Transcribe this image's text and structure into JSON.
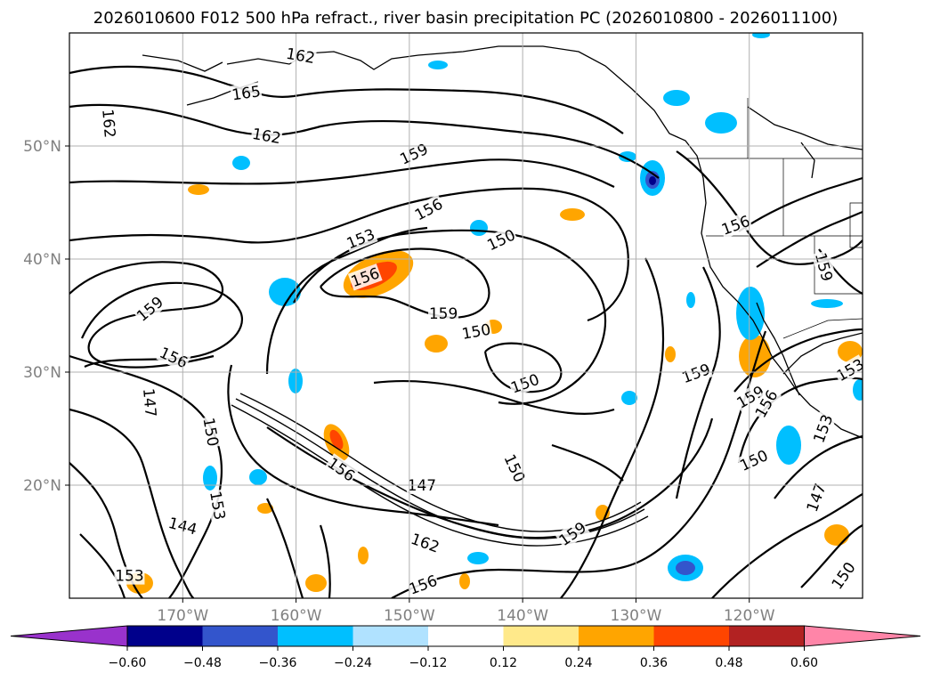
{
  "title": "2026010600 F012 500 hPa refract., river basin precipitation PC (2026010800 - 2026011100)",
  "map": {
    "lon_range": [
      -180,
      -110
    ],
    "lat_range": [
      10,
      60
    ],
    "lat_ticks": [
      {
        "lat": 50,
        "label": "50°N"
      },
      {
        "lat": 40,
        "label": "40°N"
      },
      {
        "lat": 30,
        "label": "30°N"
      },
      {
        "lat": 20,
        "label": "20°N"
      }
    ],
    "lon_ticks": [
      {
        "lon": -170,
        "label": "170°W"
      },
      {
        "lon": -160,
        "label": "160°W"
      },
      {
        "lon": -150,
        "label": "150°W"
      },
      {
        "lon": -140,
        "label": "140°W"
      },
      {
        "lon": -130,
        "label": "130°W"
      },
      {
        "lon": -120,
        "label": "120°W"
      }
    ]
  },
  "contour_labels": [
    {
      "text": "162",
      "lon": -159.6,
      "lat": 58.0,
      "rot": 10
    },
    {
      "text": "165",
      "lon": -164.4,
      "lat": 54.7,
      "rot": -8
    },
    {
      "text": "162",
      "lon": -176.5,
      "lat": 52.0,
      "rot": 85
    },
    {
      "text": "162",
      "lon": -162.6,
      "lat": 50.9,
      "rot": 10
    },
    {
      "text": "159",
      "lon": -149.6,
      "lat": 49.3,
      "rot": -25
    },
    {
      "text": "156",
      "lon": -148.3,
      "lat": 44.4,
      "rot": -28
    },
    {
      "text": "153",
      "lon": -154.3,
      "lat": 41.8,
      "rot": -22
    },
    {
      "text": "150",
      "lon": -141.9,
      "lat": 41.7,
      "rot": -25
    },
    {
      "text": "156",
      "lon": -153.9,
      "lat": 38.4,
      "rot": -20
    },
    {
      "text": "159",
      "lon": -147.0,
      "lat": 35.2,
      "rot": 0
    },
    {
      "text": "150",
      "lon": -144.1,
      "lat": 33.6,
      "rot": -10
    },
    {
      "text": "159",
      "lon": -172.9,
      "lat": 35.6,
      "rot": -40
    },
    {
      "text": "156",
      "lon": -170.8,
      "lat": 31.3,
      "rot": 25
    },
    {
      "text": "150",
      "lon": -139.8,
      "lat": 29.0,
      "rot": -20
    },
    {
      "text": "147",
      "lon": -172.9,
      "lat": 27.3,
      "rot": 85
    },
    {
      "text": "150",
      "lon": -167.5,
      "lat": 24.7,
      "rot": 80
    },
    {
      "text": "159",
      "lon": -124.7,
      "lat": 29.9,
      "rot": -20
    },
    {
      "text": "159",
      "lon": -119.9,
      "lat": 27.8,
      "rot": -30
    },
    {
      "text": "156",
      "lon": -118.5,
      "lat": 27.2,
      "rot": -60
    },
    {
      "text": "153",
      "lon": -111.1,
      "lat": 30.2,
      "rot": -30
    },
    {
      "text": "153",
      "lon": -113.5,
      "lat": 25.0,
      "rot": -70
    },
    {
      "text": "150",
      "lon": -119.6,
      "lat": 22.2,
      "rot": -25
    },
    {
      "text": "147",
      "lon": -114.1,
      "lat": 18.9,
      "rot": -70
    },
    {
      "text": "159",
      "lon": -113.4,
      "lat": 39.3,
      "rot": 75
    },
    {
      "text": "156",
      "lon": -121.2,
      "lat": 43.0,
      "rot": -20
    },
    {
      "text": "153",
      "lon": -166.9,
      "lat": 18.2,
      "rot": 80
    },
    {
      "text": "156",
      "lon": -156.0,
      "lat": 21.4,
      "rot": 35
    },
    {
      "text": "147",
      "lon": -148.9,
      "lat": 20.0,
      "rot": 0
    },
    {
      "text": "150",
      "lon": -140.7,
      "lat": 21.5,
      "rot": 65
    },
    {
      "text": "144",
      "lon": -170.0,
      "lat": 16.4,
      "rot": 15
    },
    {
      "text": "153",
      "lon": -174.7,
      "lat": 12.0,
      "rot": 0
    },
    {
      "text": "162",
      "lon": -148.6,
      "lat": 14.9,
      "rot": 20
    },
    {
      "text": "159",
      "lon": -135.6,
      "lat": 15.7,
      "rot": -35
    },
    {
      "text": "156",
      "lon": -148.8,
      "lat": 11.2,
      "rot": -20
    },
    {
      "text": "150",
      "lon": -111.7,
      "lat": 12.0,
      "rot": -55
    }
  ],
  "colorbar": {
    "ticks": [
      "−0.60",
      "−0.48",
      "−0.36",
      "−0.24",
      "−0.12",
      "0.12",
      "0.24",
      "0.36",
      "0.48",
      "0.60"
    ],
    "colors": [
      "#9932cc",
      "#00008b",
      "#3355cc",
      "#00bfff",
      "#b0e2ff",
      "#ffffff",
      "#ffe98a",
      "#ffa500",
      "#ff4500",
      "#b22222",
      "#ff85a8"
    ]
  }
}
